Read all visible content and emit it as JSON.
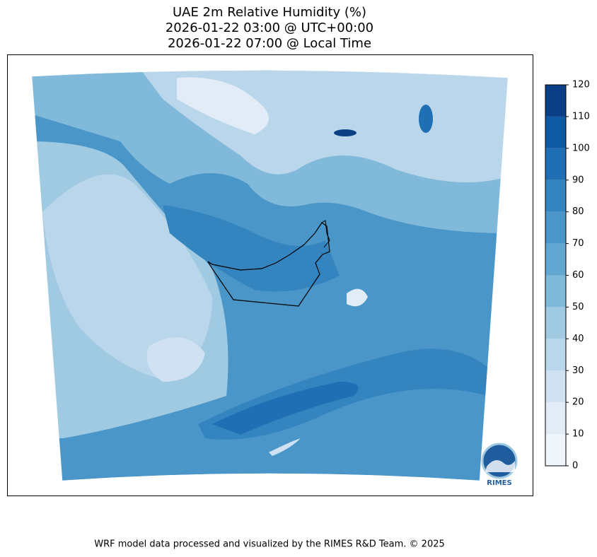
{
  "header": {
    "title_lines": [
      "UAE 2m Relative Humidity (%)",
      "2026-01-22 03:00 @ UTC+00:00",
      "2026-01-22 07:00 @ Local Time"
    ]
  },
  "colorbar": {
    "lim": [
      0,
      120
    ],
    "ticks": [
      0,
      10,
      20,
      30,
      40,
      50,
      60,
      70,
      80,
      90,
      100,
      110,
      120
    ],
    "colors": [
      "#f0f6fc",
      "#e1ecf7",
      "#d0e2f2",
      "#bad6eb",
      "#9fcae1",
      "#80b9da",
      "#62a7d2",
      "#4a96c8",
      "#3484bf",
      "#206fb4",
      "#0e59a3",
      "#0a3f85"
    ]
  },
  "logo": {
    "text": "RIMES"
  },
  "footer": {
    "credit": "WRF model data processed and visualized by the RIMES R&D Team. © 2025"
  }
}
